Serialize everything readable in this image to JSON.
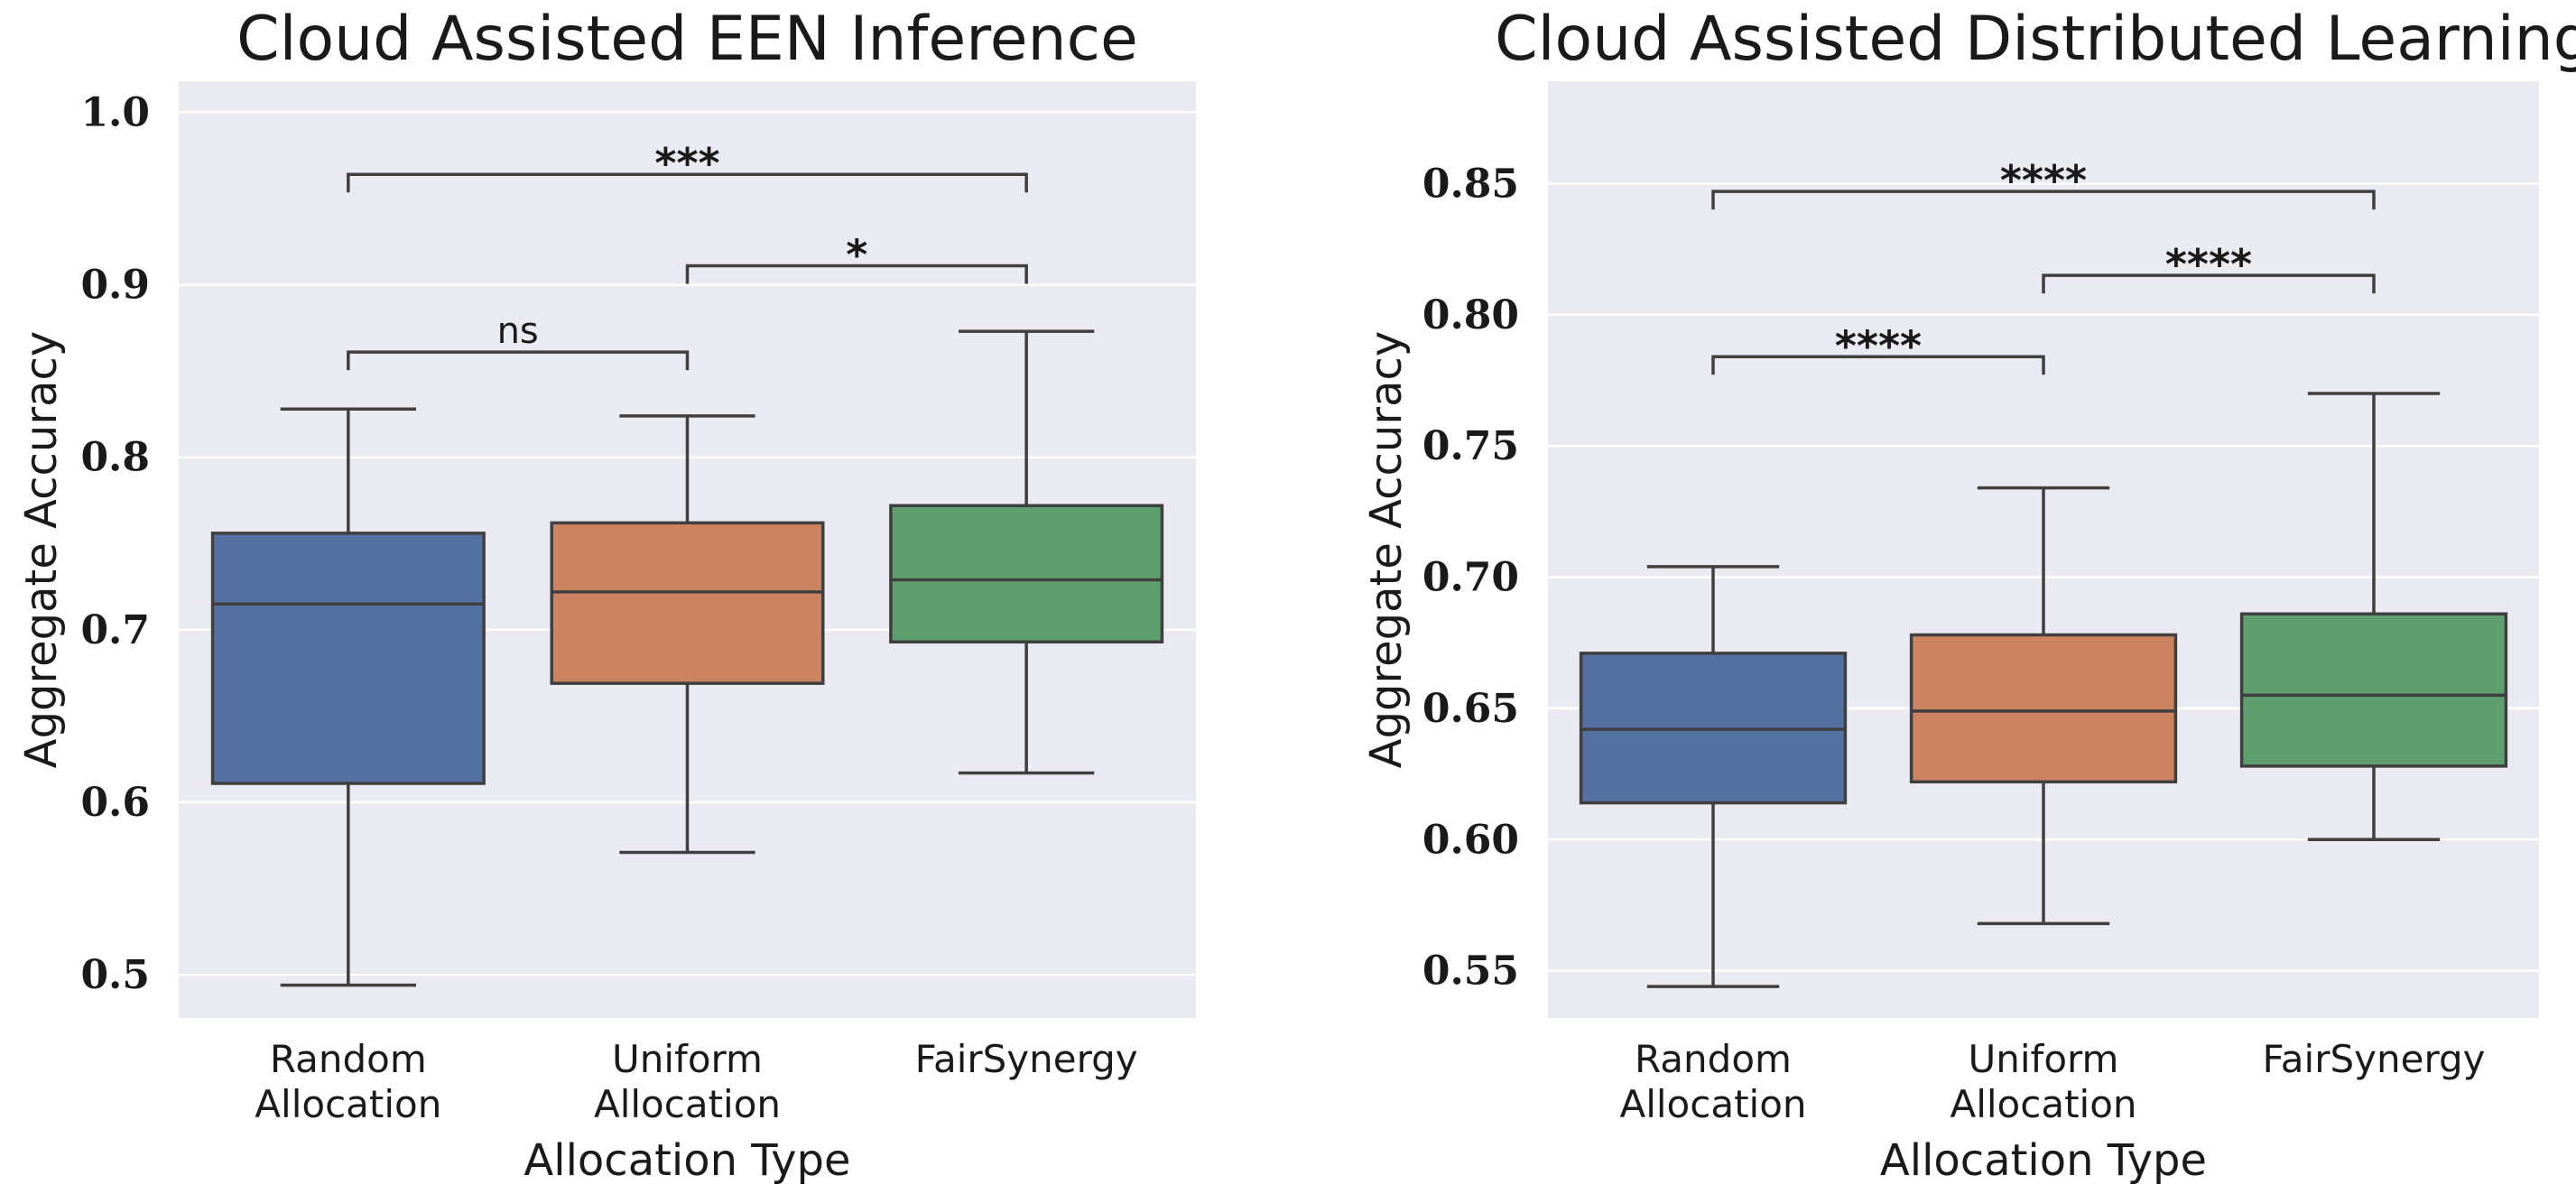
{
  "chart_data": [
    {
      "type": "box",
      "title": "Cloud Assisted EEN Inference",
      "xlabel": "Allocation Type",
      "ylabel": "Aggregate Accuracy",
      "ylim": [
        0.475,
        1.018
      ],
      "yticks": [
        "0.5",
        "0.6",
        "0.7",
        "0.8",
        "0.9",
        "1.0"
      ],
      "ytick_values": [
        0.5,
        0.6,
        0.7,
        0.8,
        0.9,
        1.0
      ],
      "grid": true,
      "categories": [
        {
          "lines": [
            "Random",
            "Allocation"
          ]
        },
        {
          "lines": [
            "Uniform",
            "Allocation"
          ]
        },
        {
          "lines": [
            "FairSynergy"
          ]
        }
      ],
      "boxes": [
        {
          "whisker_low": 0.494,
          "q1": 0.611,
          "median": 0.715,
          "q3": 0.756,
          "whisker_high": 0.828,
          "color": "#5471a2"
        },
        {
          "whisker_low": 0.571,
          "q1": 0.669,
          "median": 0.722,
          "q3": 0.762,
          "whisker_high": 0.824,
          "color": "#cc8460"
        },
        {
          "whisker_low": 0.617,
          "q1": 0.693,
          "median": 0.729,
          "q3": 0.772,
          "whisker_high": 0.873,
          "color": "#5f9e6e"
        }
      ],
      "annotations": [
        {
          "from": 0,
          "to": 1,
          "label": "ns",
          "y": 0.861
        },
        {
          "from": 1,
          "to": 2,
          "label": "*",
          "y": 0.911
        },
        {
          "from": 0,
          "to": 2,
          "label": "***",
          "y": 0.964
        }
      ]
    },
    {
      "type": "box",
      "title": "Cloud Assisted Distributed Learning",
      "xlabel": "Allocation Type",
      "ylabel": "Aggregate Accuracy",
      "ylim": [
        0.532,
        0.889
      ],
      "yticks": [
        "0.55",
        "0.60",
        "0.65",
        "0.70",
        "0.75",
        "0.80",
        "0.85"
      ],
      "ytick_values": [
        0.55,
        0.6,
        0.65,
        0.7,
        0.75,
        0.8,
        0.85
      ],
      "grid": true,
      "categories": [
        {
          "lines": [
            "Random",
            "Allocation"
          ]
        },
        {
          "lines": [
            "Uniform",
            "Allocation"
          ]
        },
        {
          "lines": [
            "FairSynergy"
          ]
        }
      ],
      "boxes": [
        {
          "whisker_low": 0.544,
          "q1": 0.614,
          "median": 0.642,
          "q3": 0.671,
          "whisker_high": 0.704,
          "color": "#5471a2"
        },
        {
          "whisker_low": 0.568,
          "q1": 0.622,
          "median": 0.649,
          "q3": 0.678,
          "whisker_high": 0.734,
          "color": "#cc8460"
        },
        {
          "whisker_low": 0.6,
          "q1": 0.628,
          "median": 0.655,
          "q3": 0.686,
          "whisker_high": 0.77,
          "color": "#5f9e6e"
        }
      ],
      "annotations": [
        {
          "from": 0,
          "to": 1,
          "label": "****",
          "y": 0.784
        },
        {
          "from": 1,
          "to": 2,
          "label": "****",
          "y": 0.815
        },
        {
          "from": 0,
          "to": 2,
          "label": "****",
          "y": 0.847
        }
      ]
    }
  ],
  "colors": {
    "plot_background": "#eaeaf2",
    "grid": "#ffffff",
    "lines": "#3f3f3f"
  }
}
